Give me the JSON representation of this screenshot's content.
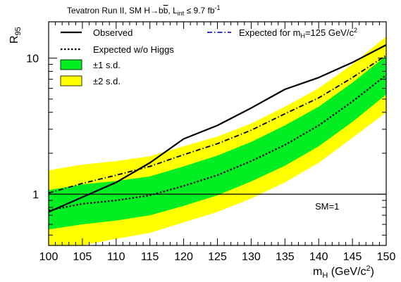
{
  "chart_data": {
    "type": "line",
    "title": {
      "main": "Tevatron Run II,   SM H→b",
      "main_over": "b",
      "tail_pre": ",   L",
      "tail_sub": "int",
      "tail_mid": " ≤ 9.7 fb",
      "tail_sup": "-1"
    },
    "ylabel": {
      "base": "R",
      "sub": "95"
    },
    "xlabel": {
      "base": "m",
      "sub": "H",
      "unit_open": " (GeV/c",
      "unit_sup": "2",
      "unit_close": ")"
    },
    "xlim": [
      100,
      150
    ],
    "ylim": [
      0.42,
      18.5
    ],
    "yscale": "log",
    "x_ticks": [
      "100",
      "105",
      "110",
      "115",
      "120",
      "125",
      "130",
      "135",
      "140",
      "145",
      "150"
    ],
    "y_tick_labels": [
      "1",
      "10"
    ],
    "x": [
      100,
      105,
      110,
      115,
      120,
      125,
      130,
      135,
      140,
      145,
      150
    ],
    "series": [
      {
        "name": "Observed",
        "values": [
          0.74,
          0.95,
          1.22,
          1.7,
          2.55,
          3.2,
          4.3,
          5.9,
          7.2,
          9.3,
          12.5
        ],
        "color": "#000000",
        "style": "solid"
      },
      {
        "name": "Expected w/o Higgs",
        "values": [
          0.76,
          0.85,
          0.9,
          0.98,
          1.15,
          1.38,
          1.75,
          2.3,
          3.2,
          4.8,
          7.5
        ],
        "color": "#000000",
        "style": "dotted"
      },
      {
        "name": "Expected for m_H=125 GeV/c^2",
        "values": [
          1.02,
          1.2,
          1.38,
          1.6,
          1.95,
          2.35,
          2.95,
          3.9,
          5.1,
          7.2,
          10.5
        ],
        "color": "#000000",
        "style": "dashdot"
      }
    ],
    "bands": [
      {
        "name": "±2 s.d.",
        "color": "#ffff00",
        "lower": [
          0.39,
          0.42,
          0.47,
          0.52,
          0.62,
          0.74,
          0.93,
          1.22,
          1.7,
          2.6,
          4.0
        ],
        "upper": [
          1.5,
          1.65,
          1.75,
          1.9,
          2.25,
          2.65,
          3.3,
          4.4,
          6.0,
          9.0,
          14.5
        ]
      },
      {
        "name": "±1 s.d.",
        "color": "#00ee22",
        "lower": [
          0.55,
          0.6,
          0.64,
          0.7,
          0.82,
          0.98,
          1.24,
          1.62,
          2.25,
          3.4,
          5.4
        ],
        "upper": [
          1.07,
          1.18,
          1.25,
          1.35,
          1.6,
          1.92,
          2.42,
          3.2,
          4.4,
          6.6,
          10.4
        ]
      }
    ],
    "legend": {
      "observed": "Observed",
      "expected_no_higgs": "Expected w/o Higgs",
      "one_sd": "±1 s.d.",
      "two_sd": "±2 s.d.",
      "expected_125_pre": "Expected for m",
      "expected_125_sub": "H",
      "expected_125_mid": "=125 GeV/c",
      "expected_125_sup": "2"
    },
    "reference_line": {
      "y": 1,
      "label": "SM=1"
    }
  }
}
